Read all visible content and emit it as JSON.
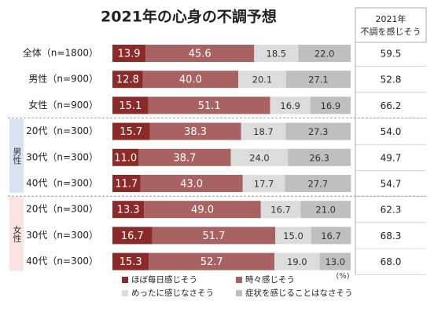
{
  "chart_data": {
    "type": "bar",
    "orientation": "horizontal",
    "stacked": true,
    "title": "2021年の心身の不調予想",
    "categories": [
      "全体（n=1800）",
      "男性（n=900）",
      "女性（n=900）",
      "20代（n=300）",
      "30代（n=300）",
      "40代（n=300）",
      "20代（n=300）",
      "30代（n=300）",
      "40代（n=300）"
    ],
    "category_groups": [
      null,
      null,
      null,
      "男性",
      "男性",
      "男性",
      "女性",
      "女性",
      "女性"
    ],
    "groups": [
      {
        "name": "男性",
        "color": "#dae3f3"
      },
      {
        "name": "女性",
        "color": "#fbe3e3"
      }
    ],
    "xlim": [
      0,
      100
    ],
    "unit": "(%)",
    "series": [
      {
        "name": "ほぼ毎日感じそう",
        "color": "#8c2a2a",
        "label_color": "#ffffff",
        "values": [
          13.9,
          12.8,
          15.1,
          15.7,
          11.0,
          11.7,
          13.3,
          16.7,
          15.3
        ],
        "value_labels": [
          "13.9",
          "12.8",
          "15.1",
          "15.7",
          "11.0",
          "11.7",
          "13.3",
          "16.7",
          "15.3"
        ]
      },
      {
        "name": "時々感じそう",
        "color": "#a86262",
        "label_color": "#ffffff",
        "values": [
          45.6,
          40.0,
          51.1,
          38.3,
          38.7,
          43.0,
          49.0,
          51.7,
          52.7
        ],
        "value_labels": [
          "45.6",
          "40.0",
          "51.1",
          "38.3",
          "38.7",
          "43.0",
          "49.0",
          "51.7",
          "52.7"
        ]
      },
      {
        "name": "めったに感じなさそう",
        "color": "#dcdcdc",
        "label_color": "#333333",
        "values": [
          18.5,
          20.1,
          16.9,
          18.7,
          24.0,
          17.7,
          16.7,
          15.0,
          19.0
        ],
        "value_labels": [
          "18.5",
          "20.1",
          "16.9",
          "18.7",
          "24.0",
          "17.7",
          "16.7",
          "15.0",
          "19.0"
        ]
      },
      {
        "name": "症状を感じることはなさそう",
        "color": "#bfbfbf",
        "label_color": "#333333",
        "values": [
          22.0,
          27.1,
          16.9,
          27.3,
          26.3,
          27.7,
          21.0,
          16.7,
          13.0
        ],
        "value_labels": [
          "22.0",
          "27.1",
          "16.9",
          "27.3",
          "26.3",
          "27.7",
          "21.0",
          "16.7",
          "13.0"
        ]
      }
    ],
    "summary_header": [
      "2021年",
      "不調を感じそう"
    ],
    "summary_values": [
      59.5,
      52.8,
      66.2,
      54.0,
      49.7,
      54.7,
      62.3,
      68.3,
      68.0
    ],
    "summary_value_labels": [
      "59.5",
      "52.8",
      "66.2",
      "54.0",
      "49.7",
      "54.7",
      "62.3",
      "68.3",
      "68.0"
    ]
  }
}
